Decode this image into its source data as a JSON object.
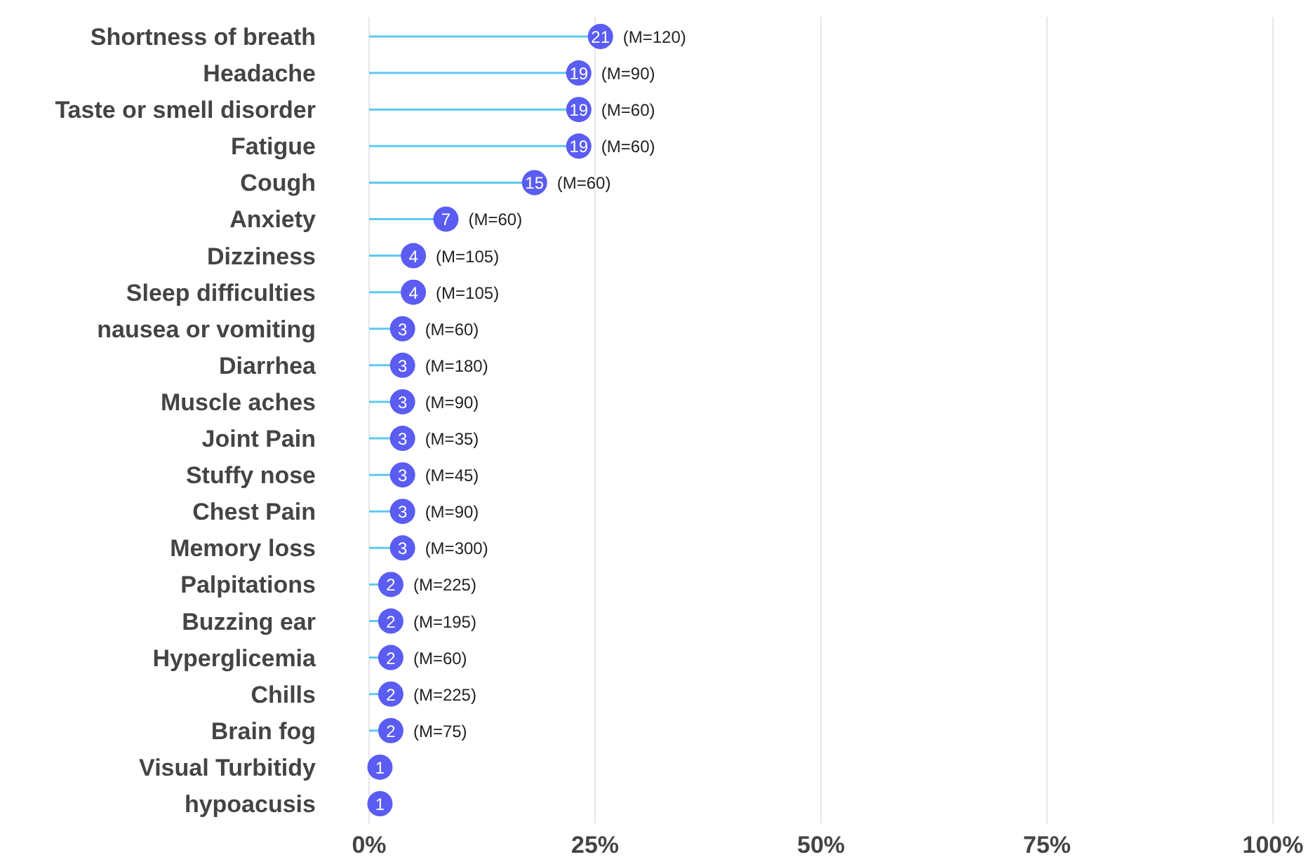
{
  "chart_data": {
    "type": "lollipop",
    "orientation": "horizontal",
    "categories": [
      "Shortness of breath",
      "Headache",
      "Taste or smell disorder",
      "Fatigue",
      "Cough",
      "Anxiety",
      "Dizziness",
      "Sleep difficulties",
      "nausea or vomiting",
      "Diarrhea",
      "Muscle aches",
      "Joint Pain",
      "Stuffy nose",
      "Chest Pain",
      "Memory loss",
      "Palpitations",
      "Buzzing ear",
      "Hyperglicemia",
      "Chills",
      "Brain fog",
      "Visual Turbitidy",
      "hypoacusis"
    ],
    "series": [
      {
        "color": "#5a5cf2",
        "values": [
          25.6,
          23.2,
          23.2,
          23.2,
          18.3,
          8.5,
          4.9,
          4.9,
          3.7,
          3.7,
          3.7,
          3.7,
          3.7,
          3.7,
          3.7,
          2.4,
          2.4,
          2.4,
          2.4,
          2.4,
          1.2,
          1.2
        ]
      }
    ],
    "xlim": [
      0,
      100
    ],
    "xticks": [
      {
        "value": 0,
        "label": "0%"
      },
      {
        "value": 25,
        "label": "25%"
      },
      {
        "value": 50,
        "label": "50%"
      },
      {
        "value": 75,
        "label": "75%"
      },
      {
        "value": 100,
        "label": "100%"
      }
    ],
    "grid": "x",
    "annotations": [
      {
        "text": "21",
        "x": 25.6,
        "y": "Shortness of breath"
      },
      {
        "text": "19",
        "x": 23.2,
        "y": "Headache"
      },
      {
        "text": "19",
        "x": 23.2,
        "y": "Taste or smell disorder"
      },
      {
        "text": "19",
        "x": 23.2,
        "y": "Fatigue"
      },
      {
        "text": "15",
        "x": 18.3,
        "y": "Cough"
      },
      {
        "text": "7",
        "x": 8.5,
        "y": "Anxiety"
      },
      {
        "text": "4",
        "x": 4.9,
        "y": "Dizziness"
      },
      {
        "text": "4",
        "x": 4.9,
        "y": "Sleep difficulties"
      },
      {
        "text": "3",
        "x": 3.7,
        "y": "nausea or vomiting"
      },
      {
        "text": "3",
        "x": 3.7,
        "y": "Diarrhea"
      },
      {
        "text": "3",
        "x": 3.7,
        "y": "Muscle aches"
      },
      {
        "text": "3",
        "x": 3.7,
        "y": "Joint Pain"
      },
      {
        "text": "3",
        "x": 3.7,
        "y": "Stuffy nose"
      },
      {
        "text": "3",
        "x": 3.7,
        "y": "Chest Pain"
      },
      {
        "text": "3",
        "x": 3.7,
        "y": "Memory loss"
      },
      {
        "text": "2",
        "x": 2.4,
        "y": "Palpitations"
      },
      {
        "text": "2",
        "x": 2.4,
        "y": "Buzzing ear"
      },
      {
        "text": "2",
        "x": 2.4,
        "y": "Hyperglicemia"
      },
      {
        "text": "2",
        "x": 2.4,
        "y": "Chills"
      },
      {
        "text": "2",
        "x": 2.4,
        "y": "Brain fog"
      },
      {
        "text": "1",
        "x": 1.2,
        "y": "Visual Turbitidy"
      },
      {
        "text": "1",
        "x": 1.2,
        "y": "hypoacusis"
      },
      {
        "text": "(M=120)",
        "x": 25.6,
        "y": "Shortness of breath"
      },
      {
        "text": "(M=90)",
        "x": 23.2,
        "y": "Headache"
      },
      {
        "text": "(M=60)",
        "x": 23.2,
        "y": "Taste or smell disorder"
      },
      {
        "text": "(M=60)",
        "x": 23.2,
        "y": "Fatigue"
      },
      {
        "text": "(M=60)",
        "x": 18.3,
        "y": "Cough"
      },
      {
        "text": "(M=60)",
        "x": 8.5,
        "y": "Anxiety"
      },
      {
        "text": "(M=105)",
        "x": 4.9,
        "y": "Dizziness"
      },
      {
        "text": "(M=105)",
        "x": 4.9,
        "y": "Sleep difficulties"
      },
      {
        "text": "(M=60)",
        "x": 3.7,
        "y": "nausea or vomiting"
      },
      {
        "text": "(M=180)",
        "x": 3.7,
        "y": "Diarrhea"
      },
      {
        "text": "(M=90)",
        "x": 3.7,
        "y": "Muscle aches"
      },
      {
        "text": "(M=35)",
        "x": 3.7,
        "y": "Joint Pain"
      },
      {
        "text": "(M=45)",
        "x": 3.7,
        "y": "Stuffy nose"
      },
      {
        "text": "(M=90)",
        "x": 3.7,
        "y": "Chest Pain"
      },
      {
        "text": "(M=300)",
        "x": 3.7,
        "y": "Memory loss"
      },
      {
        "text": "(M=225)",
        "x": 2.4,
        "y": "Palpitations"
      },
      {
        "text": "(M=195)",
        "x": 2.4,
        "y": "Buzzing ear"
      },
      {
        "text": "(M=60)",
        "x": 2.4,
        "y": "Hyperglicemia"
      },
      {
        "text": "(M=225)",
        "x": 2.4,
        "y": "Chills"
      },
      {
        "text": "(M=75)",
        "x": 2.4,
        "y": "Brain fog"
      }
    ]
  }
}
